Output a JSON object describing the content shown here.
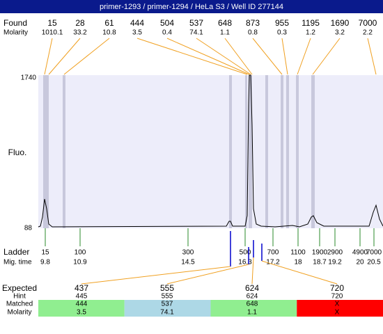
{
  "title": "primer-1293 / primer-1294 / HeLa S3 / Well ID 277144",
  "found": {
    "label": "Found",
    "sublabel": "Molarity",
    "peaks": [
      {
        "size": "15",
        "molarity": "1010.1"
      },
      {
        "size": "28",
        "molarity": "33.2"
      },
      {
        "size": "61",
        "molarity": "10.8"
      },
      {
        "size": "444",
        "molarity": "3.5"
      },
      {
        "size": "504",
        "molarity": "0.4"
      },
      {
        "size": "537",
        "molarity": "74.1"
      },
      {
        "size": "648",
        "molarity": "1.1"
      },
      {
        "size": "873",
        "molarity": "0.8"
      },
      {
        "size": "955",
        "molarity": "0.3"
      },
      {
        "size": "1195",
        "molarity": "1.2"
      },
      {
        "size": "1690",
        "molarity": "3.2"
      },
      {
        "size": "7000",
        "molarity": "2.2"
      }
    ]
  },
  "plot": {
    "ylabel": "Fluo.",
    "ymax": "1740",
    "ymin": "88"
  },
  "ladder": {
    "label": "Ladder",
    "sublabel": "Mig. time",
    "items": [
      {
        "size": "15",
        "time": "9.8"
      },
      {
        "size": "100",
        "time": "10.9"
      },
      {
        "size": "300",
        "time": "14.5"
      },
      {
        "size": "500",
        "time": "16.3"
      },
      {
        "size": "700",
        "time": "17.2"
      },
      {
        "size": "1100",
        "time": "18"
      },
      {
        "size": "1900",
        "time": "18.7"
      },
      {
        "size": "2900",
        "time": "19.2"
      },
      {
        "size": "4900",
        "time": "20"
      },
      {
        "size": "7000",
        "time": "20.5"
      }
    ]
  },
  "expected": {
    "labels": {
      "expected": "Expected",
      "hint": "Hint",
      "matched": "Matched",
      "molarity": "Molarity"
    },
    "items": [
      {
        "expected": "437",
        "hint": "445",
        "matched": "444",
        "molarity": "3.5"
      },
      {
        "expected": "555",
        "hint": "555",
        "matched": "537",
        "molarity": "74.1"
      },
      {
        "expected": "624",
        "hint": "624",
        "matched": "648",
        "molarity": "1.1"
      },
      {
        "expected": "720",
        "hint": "720",
        "matched": "X",
        "molarity": "X"
      }
    ]
  }
}
